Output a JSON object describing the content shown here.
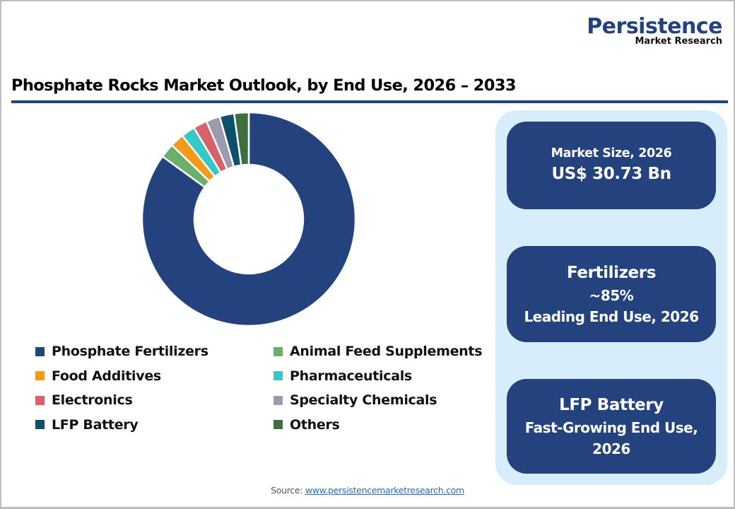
{
  "logo": {
    "name": "Persistence",
    "subtitle": "Market Research"
  },
  "title": "Phosphate Rocks Market Outlook, by End Use, 2026 – 2033",
  "chart_data": {
    "type": "pie",
    "variant": "donut",
    "title": "Phosphate Rocks Market Outlook, by End Use, 2026 – 2033",
    "unit": "% share (approx.)",
    "categories": [
      "Phosphate Fertilizers",
      "Animal Feed Supplements",
      "Food Additives",
      "Pharmaceuticals",
      "Electronics",
      "Specialty Chemicals",
      "LFP Battery",
      "Others"
    ],
    "values": [
      85,
      2.2,
      2.1,
      2.1,
      2.1,
      2.1,
      2.2,
      2.2
    ],
    "colors": [
      "#24427e",
      "#6aaf6a",
      "#f39a1a",
      "#36c8c6",
      "#d9616a",
      "#9c9ab0",
      "#0f4f6e",
      "#3d6e3e"
    ],
    "start_angle_deg": 0,
    "direction": "clockwise",
    "legend_position": "bottom",
    "data_labels": false
  },
  "legend": {
    "items": [
      {
        "label": "Phosphate Fertilizers",
        "color": "#24427e"
      },
      {
        "label": "Animal Feed Supplements",
        "color": "#6aaf6a"
      },
      {
        "label": "Food Additives",
        "color": "#f39a1a"
      },
      {
        "label": "Pharmaceuticals",
        "color": "#36c8c6"
      },
      {
        "label": "Electronics",
        "color": "#d9616a"
      },
      {
        "label": "Specialty Chemicals",
        "color": "#9c9ab0"
      },
      {
        "label": "LFP Battery",
        "color": "#0f4f6e"
      },
      {
        "label": "Others",
        "color": "#3d6e3e"
      }
    ]
  },
  "cards": {
    "market_size": {
      "label": "Market Size, 2026",
      "value": "US$ 30.73 Bn"
    },
    "leading": {
      "segment": "Fertilizers",
      "share": "~85%",
      "caption": "Leading End Use, 2026"
    },
    "fastest": {
      "segment": "LFP Battery",
      "caption_line1": "Fast-Growing End Use,",
      "caption_line2": "2026"
    }
  },
  "source": {
    "prefix": "Source:",
    "link_text": "www.persistencemarketresearch.com"
  },
  "colors": {
    "brand_navy": "#24427e",
    "panel_bg": "#d8edfb"
  }
}
